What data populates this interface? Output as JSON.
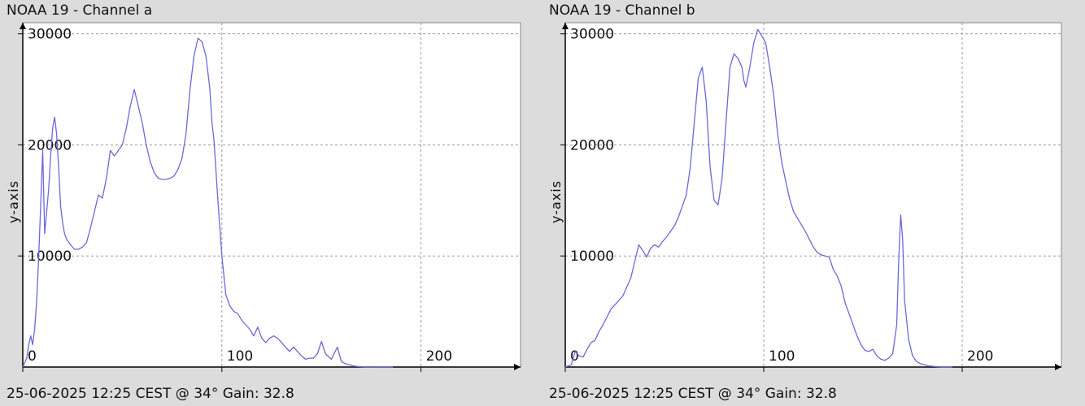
{
  "colors": {
    "background": "#dcdcdc",
    "plot_background": "#ffffff",
    "grid": "#9a9a9a",
    "axis": "#000000",
    "series": "#6a6ad8"
  },
  "chart_data": [
    {
      "type": "line",
      "title": "NOAA 19 - Channel a",
      "footer": "25-06-2025 12:25 CEST @ 34° Gain: 32.8",
      "xlabel": "",
      "ylabel": "y-axis",
      "xlim": [
        0,
        250
      ],
      "ylim": [
        0,
        31000
      ],
      "xticks": [
        0,
        100,
        200
      ],
      "xtick_labels": [
        "0",
        "100",
        "200"
      ],
      "yticks": [
        10000,
        20000,
        30000
      ],
      "ytick_labels": [
        "10000",
        "20000",
        "30000"
      ],
      "grid": true,
      "series": [
        {
          "x": [
            0,
            2,
            3,
            4,
            5,
            6,
            7,
            8,
            9,
            10,
            11,
            12,
            13,
            14,
            15,
            16,
            17,
            18,
            19,
            20,
            21,
            22,
            24,
            26,
            28,
            30,
            32,
            34,
            36,
            38,
            40,
            42,
            44,
            46,
            48,
            50,
            52,
            54,
            56,
            58,
            60,
            62,
            64,
            66,
            68,
            70,
            72,
            74,
            76,
            78,
            80,
            82,
            84,
            86,
            88,
            90,
            92,
            94,
            95,
            96,
            98,
            100,
            102,
            104,
            106,
            108,
            110,
            112,
            114,
            116,
            118,
            120,
            122,
            124,
            126,
            128,
            130,
            132,
            134,
            136,
            138,
            140,
            142,
            144,
            146,
            148,
            150,
            152,
            155,
            158,
            160,
            162,
            164,
            166,
            168,
            170,
            172,
            174,
            176,
            178,
            180,
            182,
            184,
            186
          ],
          "y": [
            0,
            800,
            2000,
            2800,
            2000,
            3500,
            6000,
            10000,
            14500,
            19500,
            12000,
            14000,
            16000,
            19000,
            21500,
            22500,
            21000,
            18000,
            14500,
            13000,
            12000,
            11500,
            11000,
            10600,
            10600,
            10800,
            11200,
            12500,
            14000,
            15500,
            15200,
            17000,
            19500,
            19000,
            19500,
            20000,
            21500,
            23500,
            25000,
            23500,
            22000,
            20000,
            18500,
            17500,
            17000,
            16900,
            16900,
            17000,
            17200,
            17800,
            18800,
            21000,
            25000,
            28000,
            29600,
            29300,
            28000,
            25000,
            22000,
            20500,
            15000,
            10000,
            6500,
            5500,
            5000,
            4800,
            4200,
            3800,
            3400,
            2800,
            3600,
            2600,
            2200,
            2600,
            2800,
            2600,
            2200,
            1800,
            1400,
            1800,
            1400,
            1000,
            700,
            800,
            800,
            1200,
            2300,
            1200,
            700,
            1800,
            500,
            300,
            200,
            100,
            50,
            30,
            10,
            5,
            0,
            0,
            0,
            0,
            0,
            0
          ]
        }
      ]
    },
    {
      "type": "line",
      "title": "NOAA 19 - Channel b",
      "footer": "25-06-2025 12:25 CEST @ 34° Gain: 32.8",
      "xlabel": "",
      "ylabel": "y-axis",
      "xlim": [
        0,
        250
      ],
      "ylim": [
        0,
        31000
      ],
      "xticks": [
        0,
        100,
        200
      ],
      "xtick_labels": [
        "0",
        "100",
        "200"
      ],
      "yticks": [
        10000,
        20000,
        30000
      ],
      "ytick_labels": [
        "10000",
        "20000",
        "30000"
      ],
      "grid": true,
      "series": [
        {
          "x": [
            0,
            3,
            4,
            5,
            7,
            9,
            11,
            13,
            15,
            17,
            19,
            21,
            23,
            25,
            27,
            29,
            31,
            33,
            35,
            37,
            39,
            41,
            43,
            45,
            47,
            49,
            51,
            53,
            55,
            57,
            59,
            61,
            63,
            65,
            67,
            69,
            71,
            73,
            75,
            77,
            79,
            81,
            83,
            85,
            87,
            89,
            90,
            91,
            93,
            95,
            97,
            99,
            101,
            103,
            105,
            107,
            109,
            111,
            113,
            115,
            117,
            119,
            121,
            123,
            125,
            127,
            129,
            131,
            133,
            135,
            137,
            139,
            141,
            143,
            145,
            147,
            149,
            151,
            153,
            155,
            157,
            159,
            161,
            163,
            165,
            167,
            168,
            169,
            170,
            171,
            173,
            175,
            177,
            179,
            181,
            183,
            186,
            190,
            195
          ],
          "y": [
            0,
            200,
            800,
            1400,
            1000,
            900,
            1600,
            2200,
            2400,
            3200,
            3800,
            4500,
            5200,
            5600,
            6000,
            6400,
            7200,
            8000,
            9500,
            11000,
            10500,
            9900,
            10700,
            11000,
            10800,
            11300,
            11700,
            12200,
            12700,
            13500,
            14500,
            15500,
            18000,
            22000,
            26000,
            27000,
            24000,
            18000,
            15000,
            14600,
            17000,
            22000,
            27000,
            28200,
            27800,
            27000,
            25800,
            25200,
            27000,
            29200,
            30400,
            29800,
            29200,
            27000,
            24500,
            21000,
            18500,
            16800,
            15200,
            14000,
            13400,
            12800,
            12200,
            11500,
            10800,
            10300,
            10100,
            10000,
            9900,
            8800,
            8200,
            7300,
            5800,
            4800,
            3800,
            2800,
            2000,
            1500,
            1400,
            1600,
            1000,
            700,
            600,
            800,
            1200,
            3800,
            9500,
            13700,
            11500,
            6000,
            2500,
            1000,
            500,
            300,
            200,
            100,
            50,
            10,
            0
          ]
        }
      ]
    }
  ]
}
